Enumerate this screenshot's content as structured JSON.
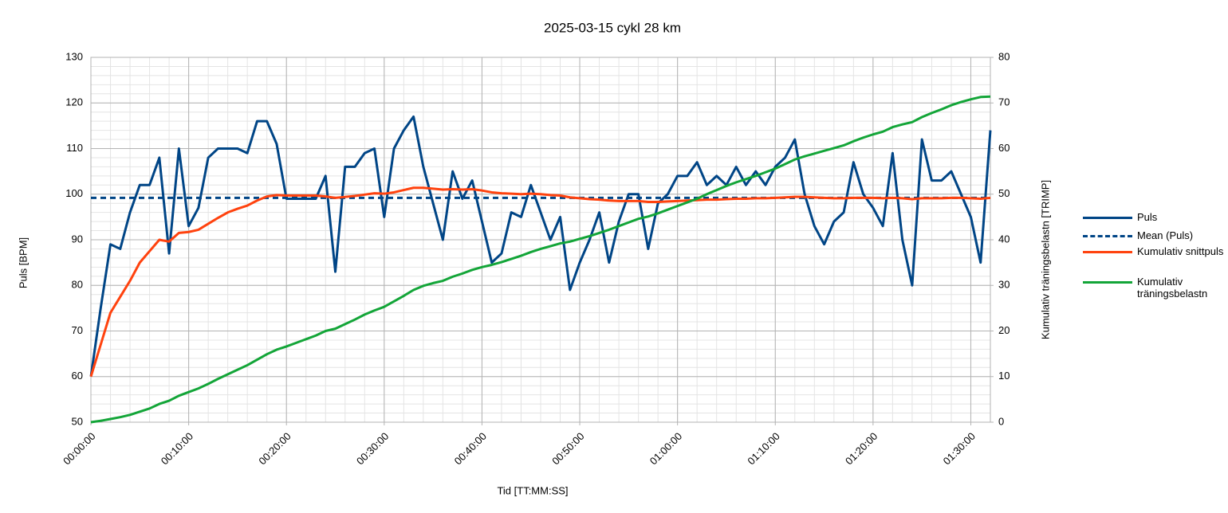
{
  "chart_data": {
    "type": "line",
    "title": "2025-03-15 cykl 28 km",
    "xlabel": "Tid [TT:MM:SS]",
    "ylabel": "Puls [BPM]",
    "y2label": "Kumulativ träningsbelastn [TRIMP]",
    "x": [
      0,
      60,
      120,
      180,
      240,
      300,
      360,
      420,
      480,
      540,
      600,
      660,
      720,
      780,
      840,
      900,
      960,
      1020,
      1080,
      1140,
      1200,
      1260,
      1320,
      1380,
      1440,
      1500,
      1560,
      1620,
      1680,
      1740,
      1800,
      1860,
      1920,
      1980,
      2040,
      2100,
      2160,
      2220,
      2280,
      2340,
      2400,
      2460,
      2520,
      2580,
      2640,
      2700,
      2760,
      2820,
      2880,
      2940,
      3000,
      3060,
      3120,
      3180,
      3240,
      3300,
      3360,
      3420,
      3480,
      3540,
      3600,
      3660,
      3720,
      3780,
      3840,
      3900,
      3960,
      4020,
      4080,
      4140,
      4200,
      4260,
      4320,
      4380,
      4440,
      4500,
      4560,
      4620,
      4680,
      4740,
      4800,
      4860,
      4920,
      4980,
      5040,
      5100,
      5160,
      5220,
      5280,
      5340,
      5400,
      5460,
      5520
    ],
    "series": [
      {
        "name": "Puls",
        "color": "#004586",
        "values": [
          60,
          75,
          89,
          88,
          96,
          102,
          102,
          108,
          87,
          110,
          93,
          97,
          108,
          110,
          110,
          110,
          109,
          116,
          116,
          111,
          99,
          99,
          99,
          99,
          104,
          83,
          106,
          106,
          109,
          110,
          95,
          110,
          114,
          117,
          106,
          98,
          90,
          105,
          99,
          103,
          94,
          85,
          87,
          96,
          95,
          102,
          96,
          90,
          95,
          79,
          85,
          90,
          96,
          85,
          94,
          100,
          100,
          88,
          98,
          100,
          104,
          104,
          107,
          102,
          104,
          102,
          106,
          102,
          105,
          102,
          106,
          108,
          112,
          100,
          93,
          89,
          94,
          96,
          107,
          100,
          97,
          93,
          109,
          90,
          80,
          112,
          103,
          103,
          105,
          100,
          95,
          85,
          114
        ]
      },
      {
        "name": "Mean (Puls)",
        "color": "#004586",
        "dashed": true,
        "x": [
          0,
          5520
        ],
        "values": [
          99.2,
          99.2
        ]
      },
      {
        "name": "Kumulativ snittpuls",
        "color": "#ff420e",
        "values": [
          60,
          67,
          74,
          77.5,
          81,
          85,
          87.5,
          90,
          89.6,
          91.5,
          91.7,
          92.2,
          93.5,
          94.8,
          96,
          96.8,
          97.5,
          98.6,
          99.5,
          99.8,
          99.7,
          99.7,
          99.7,
          99.7,
          99.5,
          99.2,
          99.4,
          99.6,
          99.9,
          100.2,
          100.1,
          100.4,
          100.9,
          101.4,
          101.4,
          101.2,
          101,
          101.1,
          101,
          101.1,
          100.8,
          100.4,
          100.2,
          100.1,
          100,
          100.1,
          100,
          99.8,
          99.7,
          99.3,
          99.1,
          98.9,
          98.8,
          98.6,
          98.5,
          98.5,
          98.5,
          98.3,
          98.3,
          98.4,
          98.5,
          98.6,
          98.7,
          98.8,
          98.8,
          98.9,
          99,
          99,
          99.1,
          99.1,
          99.2,
          99.3,
          99.4,
          99.4,
          99.3,
          99.2,
          99.1,
          99.1,
          99.2,
          99.2,
          99.2,
          99.1,
          99.2,
          99.1,
          98.9,
          99.1,
          99.1,
          99.1,
          99.2,
          99.2,
          99.1,
          99,
          99.2
        ]
      },
      {
        "name": "Kumulativ träningsbelastn",
        "color": "#13a538",
        "axis": "y2",
        "values": [
          0,
          0.3,
          0.7,
          1.1,
          1.6,
          2.3,
          3,
          4,
          4.7,
          5.8,
          6.6,
          7.4,
          8.4,
          9.5,
          10.5,
          11.5,
          12.5,
          13.7,
          14.9,
          15.9,
          16.6,
          17.4,
          18.2,
          19,
          20,
          20.5,
          21.5,
          22.5,
          23.6,
          24.5,
          25.3,
          26.5,
          27.7,
          29,
          29.9,
          30.5,
          31,
          31.9,
          32.6,
          33.4,
          34,
          34.5,
          35.1,
          35.8,
          36.5,
          37.3,
          38,
          38.6,
          39.2,
          39.6,
          40.2,
          40.8,
          41.5,
          42.2,
          43,
          43.8,
          44.6,
          45.1,
          45.8,
          46.6,
          47.4,
          48.2,
          49,
          50,
          50.9,
          51.8,
          52.6,
          53.3,
          54,
          54.8,
          55.6,
          56.6,
          57.6,
          58.3,
          58.9,
          59.5,
          60.1,
          60.7,
          61.6,
          62.4,
          63.1,
          63.7,
          64.7,
          65.3,
          65.8,
          66.9,
          67.8,
          68.6,
          69.5,
          70.2,
          70.8,
          71.3,
          71.4
        ]
      }
    ],
    "xlim": [
      0,
      5520
    ],
    "xticks": [
      {
        "value": 0,
        "label": "00:00:00"
      },
      {
        "value": 600,
        "label": "00:10:00"
      },
      {
        "value": 1200,
        "label": "00:20:00"
      },
      {
        "value": 1800,
        "label": "00:30:00"
      },
      {
        "value": 2400,
        "label": "00:40:00"
      },
      {
        "value": 3000,
        "label": "00:50:00"
      },
      {
        "value": 3600,
        "label": "01:00:00"
      },
      {
        "value": 4200,
        "label": "01:10:00"
      },
      {
        "value": 4800,
        "label": "01:20:00"
      },
      {
        "value": 5400,
        "label": "01:30:00"
      }
    ],
    "ylim": [
      50,
      130
    ],
    "yticks": [
      50,
      60,
      70,
      80,
      90,
      100,
      110,
      120,
      130
    ],
    "y2lim": [
      0,
      80
    ],
    "y2ticks": [
      0,
      10,
      20,
      30,
      40,
      50,
      60,
      70,
      80
    ],
    "grid": true,
    "x_minor_step": 120,
    "y_minor_step": 2,
    "legend": "right"
  }
}
